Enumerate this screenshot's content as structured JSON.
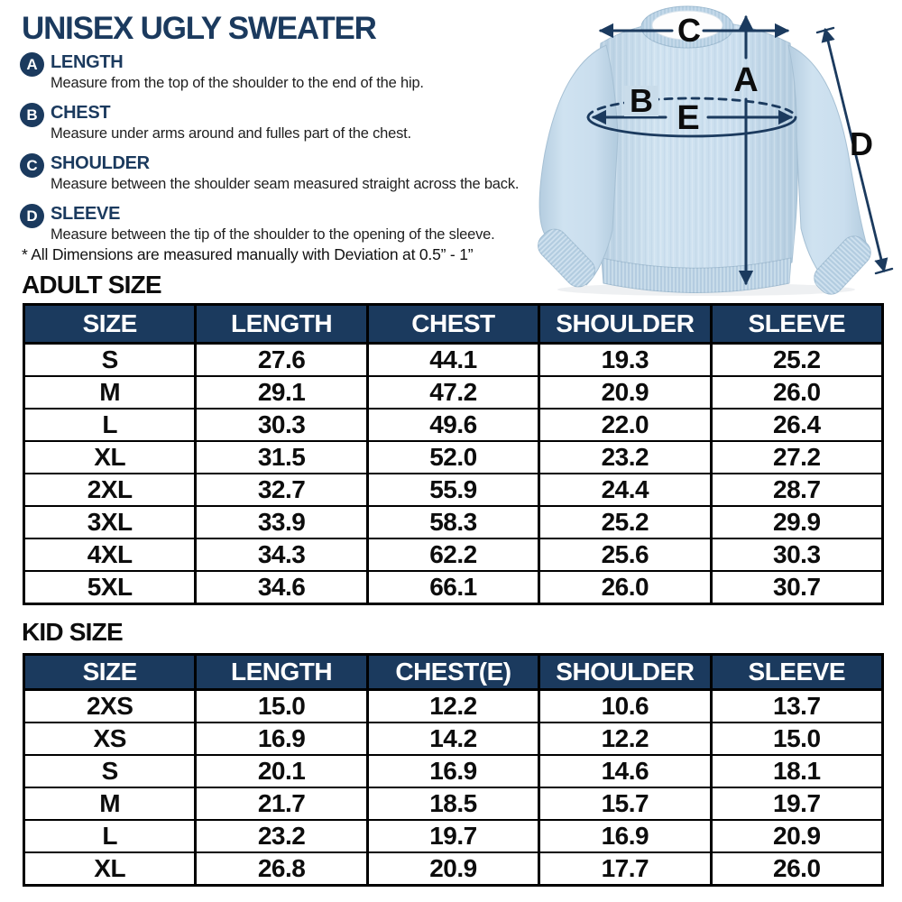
{
  "page": {
    "title": "UNISEX UGLY SWEATER"
  },
  "legend": {
    "items": [
      {
        "key": "A",
        "label": "LENGTH",
        "description": "Measure from the top of the shoulder to the end of the hip."
      },
      {
        "key": "B",
        "label": "CHEST",
        "description": "Measure under arms around and fulles part of the chest."
      },
      {
        "key": "C",
        "label": "SHOULDER",
        "description": "Measure between the shoulder seam measured straight across the back."
      },
      {
        "key": "D",
        "label": "SLEEVE",
        "description": "Measure between the tip of the shoulder to the opening of the sleeve."
      }
    ],
    "note": "* All Dimensions are measured manually with Deviation at 0.5” - 1”"
  },
  "diagram": {
    "labels": {
      "a": "A",
      "b": "B",
      "c": "C",
      "d": "D",
      "e": "E"
    }
  },
  "adult_table": {
    "heading": "ADULT SIZE",
    "columns": [
      "SIZE",
      "LENGTH",
      "CHEST",
      "SHOULDER",
      "SLEEVE"
    ],
    "rows": [
      [
        "S",
        "27.6",
        "44.1",
        "19.3",
        "25.2"
      ],
      [
        "M",
        "29.1",
        "47.2",
        "20.9",
        "26.0"
      ],
      [
        "L",
        "30.3",
        "49.6",
        "22.0",
        "26.4"
      ],
      [
        "XL",
        "31.5",
        "52.0",
        "23.2",
        "27.2"
      ],
      [
        "2XL",
        "32.7",
        "55.9",
        "24.4",
        "28.7"
      ],
      [
        "3XL",
        "33.9",
        "58.3",
        "25.2",
        "29.9"
      ],
      [
        "4XL",
        "34.3",
        "62.2",
        "25.6",
        "30.3"
      ],
      [
        "5XL",
        "34.6",
        "66.1",
        "26.0",
        "30.7"
      ]
    ]
  },
  "kid_table": {
    "heading": "KID SIZE",
    "columns": [
      "SIZE",
      "LENGTH",
      "CHEST(E)",
      "SHOULDER",
      "SLEEVE"
    ],
    "rows": [
      [
        "2XS",
        "15.0",
        "12.2",
        "10.6",
        "13.7"
      ],
      [
        "XS",
        "16.9",
        "14.2",
        "12.2",
        "15.0"
      ],
      [
        "S",
        "20.1",
        "16.9",
        "14.6",
        "18.1"
      ],
      [
        "M",
        "21.7",
        "18.5",
        "15.7",
        "19.7"
      ],
      [
        "L",
        "23.2",
        "19.7",
        "16.9",
        "20.9"
      ],
      [
        "XL",
        "26.8",
        "20.9",
        "17.7",
        "26.0"
      ]
    ]
  },
  "colors": {
    "navy": "#1b3a5e",
    "header_bg": "#1b3a5e",
    "sweater_blue": "#c6dbea",
    "sweater_rib": "#bcd3e5",
    "text_black": "#0d0d0d",
    "white": "#ffffff"
  }
}
